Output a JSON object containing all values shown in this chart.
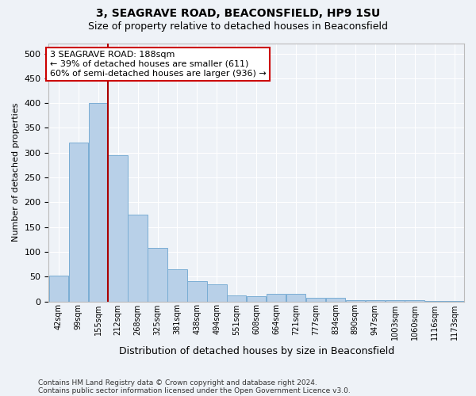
{
  "title1": "3, SEAGRAVE ROAD, BEACONSFIELD, HP9 1SU",
  "title2": "Size of property relative to detached houses in Beaconsfield",
  "xlabel": "Distribution of detached houses by size in Beaconsfield",
  "ylabel": "Number of detached properties",
  "bin_labels": [
    "42sqm",
    "99sqm",
    "155sqm",
    "212sqm",
    "268sqm",
    "325sqm",
    "381sqm",
    "438sqm",
    "494sqm",
    "551sqm",
    "608sqm",
    "664sqm",
    "721sqm",
    "777sqm",
    "834sqm",
    "890sqm",
    "947sqm",
    "1003sqm",
    "1060sqm",
    "1116sqm",
    "1173sqm"
  ],
  "counts": [
    52,
    320,
    400,
    295,
    175,
    108,
    65,
    40,
    35,
    12,
    10,
    15,
    15,
    8,
    7,
    3,
    2,
    3,
    2,
    1,
    1
  ],
  "bar_color": "#b8d0e8",
  "bar_edge_color": "#7aadd4",
  "property_bin_index": 2.5,
  "vline_color": "#aa0000",
  "annotation_text": "3 SEAGRAVE ROAD: 188sqm\n← 39% of detached houses are smaller (611)\n60% of semi-detached houses are larger (936) →",
  "annotation_box_color": "#ffffff",
  "annotation_box_edge": "#cc0000",
  "ylim": [
    0,
    520
  ],
  "yticks": [
    0,
    50,
    100,
    150,
    200,
    250,
    300,
    350,
    400,
    450,
    500
  ],
  "footnote1": "Contains HM Land Registry data © Crown copyright and database right 2024.",
  "footnote2": "Contains public sector information licensed under the Open Government Licence v3.0.",
  "bg_color": "#eef2f7",
  "grid_color": "#ffffff",
  "title_fontsize": 10,
  "subtitle_fontsize": 9,
  "ylabel_fontsize": 8,
  "xlabel_fontsize": 9,
  "ytick_fontsize": 8,
  "xtick_fontsize": 7,
  "annot_fontsize": 8
}
